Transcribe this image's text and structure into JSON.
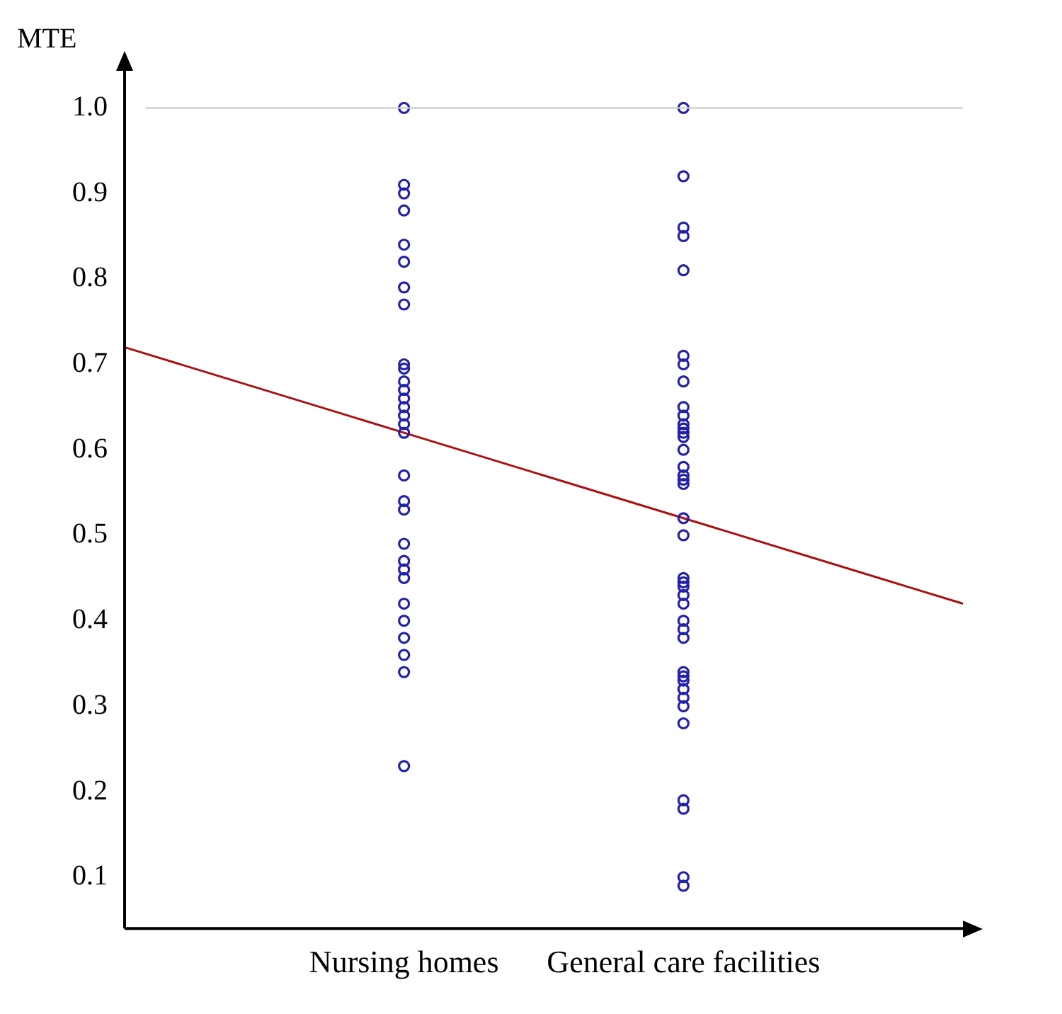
{
  "chart_data": {
    "type": "scatter",
    "ylabel": "MTE",
    "categories": [
      null,
      "Nursing homes",
      "General care facilities",
      null
    ],
    "ylim": [
      0.04,
      1.05
    ],
    "yticks": [
      0.1,
      0.2,
      0.3,
      0.4,
      0.5,
      0.6,
      0.7,
      0.8,
      0.9,
      {
        "value": 1.0,
        "label": "1.0"
      }
    ],
    "marker": "circle",
    "legend": false,
    "grid": false,
    "ref_lines": [
      {
        "axis": "y",
        "value": 1.0,
        "color": "#cccccc"
      }
    ],
    "series": [
      {
        "color": "#2222aa",
        "x": [
          "Nursing homes",
          "Nursing homes",
          "Nursing homes",
          "Nursing homes",
          "Nursing homes",
          "Nursing homes",
          "Nursing homes",
          "Nursing homes",
          "Nursing homes",
          "Nursing homes",
          "Nursing homes",
          "Nursing homes",
          "Nursing homes",
          "Nursing homes",
          "Nursing homes",
          "Nursing homes",
          "Nursing homes",
          "Nursing homes",
          "Nursing homes",
          "Nursing homes",
          "Nursing homes",
          "Nursing homes",
          "Nursing homes",
          "Nursing homes",
          "Nursing homes",
          "Nursing homes",
          "Nursing homes",
          "Nursing homes",
          "Nursing homes",
          "Nursing homes"
        ],
        "values": [
          1.0,
          0.91,
          0.9,
          0.88,
          0.84,
          0.82,
          0.79,
          0.77,
          0.7,
          0.68,
          0.67,
          0.66,
          0.65,
          0.64,
          0.63,
          0.62,
          0.57,
          0.54,
          0.53,
          0.49,
          0.47,
          0.46,
          0.45,
          0.42,
          0.4,
          0.38,
          0.36,
          0.34,
          0.23,
          0.695
        ]
      },
      {
        "color": "#2222aa",
        "x": [
          "General care facilities",
          "General care facilities",
          "General care facilities",
          "General care facilities",
          "General care facilities",
          "General care facilities",
          "General care facilities",
          "General care facilities",
          "General care facilities",
          "General care facilities",
          "General care facilities",
          "General care facilities",
          "General care facilities",
          "General care facilities",
          "General care facilities",
          "General care facilities",
          "General care facilities",
          "General care facilities",
          "General care facilities",
          "General care facilities",
          "General care facilities",
          "General care facilities",
          "General care facilities",
          "General care facilities",
          "General care facilities",
          "General care facilities",
          "General care facilities",
          "General care facilities",
          "General care facilities",
          "General care facilities",
          "General care facilities",
          "General care facilities",
          "General care facilities",
          "General care facilities",
          "General care facilities",
          "General care facilities",
          "General care facilities",
          "General care facilities",
          "General care facilities",
          "General care facilities"
        ],
        "values": [
          1.0,
          0.92,
          0.86,
          0.85,
          0.81,
          0.71,
          0.7,
          0.68,
          0.65,
          0.64,
          0.63,
          0.62,
          0.6,
          0.58,
          0.57,
          0.56,
          0.52,
          0.5,
          0.45,
          0.44,
          0.43,
          0.42,
          0.4,
          0.39,
          0.38,
          0.34,
          0.33,
          0.32,
          0.31,
          0.3,
          0.28,
          0.19,
          0.18,
          0.1,
          0.09,
          0.445,
          0.335,
          0.565,
          0.615,
          0.625
        ]
      },
      {
        "type": "line",
        "marker": "none",
        "color": "#aa1111",
        "values": [
          0.72,
          0.62,
          0.52,
          0.42
        ]
      }
    ]
  }
}
